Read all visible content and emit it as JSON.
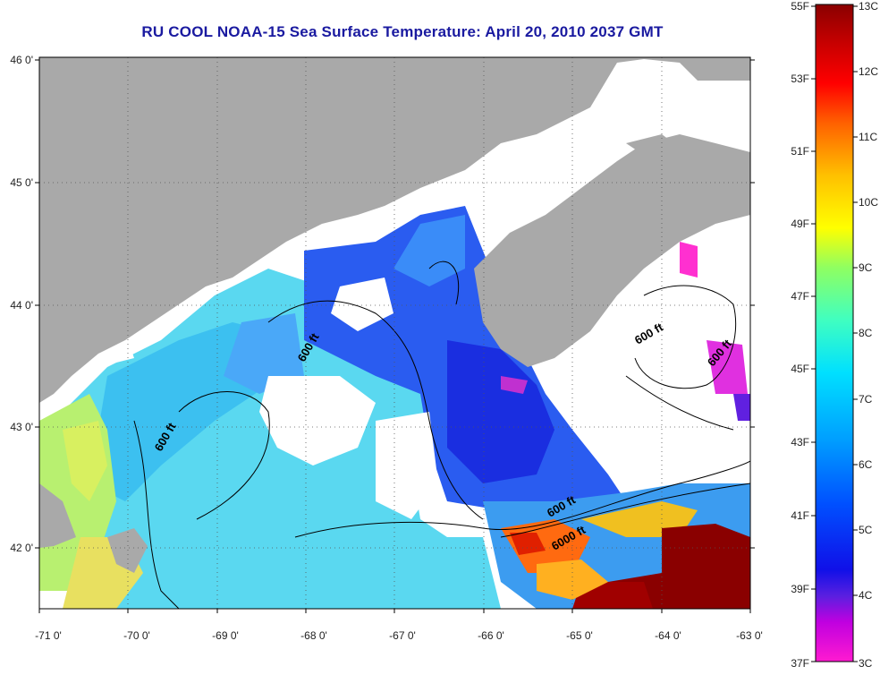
{
  "title": "RU COOL  NOAA-15  Sea Surface Temperature:  April 20, 2010 2037 GMT",
  "map": {
    "lon_ticks": [
      "-71 0'",
      "-70 0'",
      "-69 0'",
      "-68 0'",
      "-67 0'",
      "-66 0'",
      "-65 0'",
      "-64 0'",
      "-63 0'"
    ],
    "lat_ticks": [
      "46 0'",
      "45 0'",
      "44 0'",
      "43 0'",
      "42 0'"
    ],
    "lon_range": [
      -71,
      -63
    ],
    "lat_range": [
      41.5,
      46
    ],
    "isobath_labels": [
      "600 ft",
      "600 ft",
      "600 ft",
      "600 ft",
      "600 ft",
      "6000 ft"
    ],
    "colors": {
      "land": "#a9a9a9",
      "cloud": "#ffffff",
      "isobath": "#000000"
    }
  },
  "colorbar": {
    "fahrenheit_labels": [
      "55F",
      "53F",
      "51F",
      "49F",
      "47F",
      "45F",
      "43F",
      "41F",
      "39F",
      "37F"
    ],
    "celsius_labels": [
      "13C",
      "12C",
      "11C",
      "10C",
      "9C",
      "8C",
      "7C",
      "6C",
      "5C",
      "4C",
      "3C"
    ],
    "range_c": [
      3,
      13
    ]
  }
}
